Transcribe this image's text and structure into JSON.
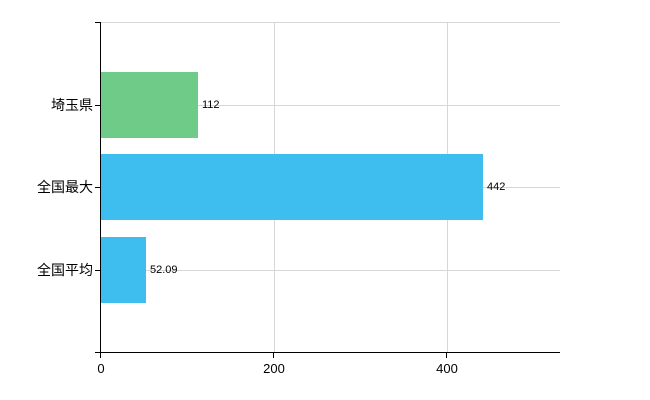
{
  "chart_data": {
    "type": "bar",
    "orientation": "horizontal",
    "title": "",
    "xlabel": "",
    "ylabel": "",
    "categories": [
      "埼玉県",
      "全国最大",
      "全国平均"
    ],
    "values": [
      112,
      442,
      52.09
    ],
    "value_labels": [
      "112",
      "442",
      "52.09"
    ],
    "bar_colors": [
      "#6fcb88",
      "#3ebeee",
      "#3ebeee"
    ],
    "xlim": [
      0,
      531
    ],
    "xticks": [
      0,
      200,
      400
    ],
    "xtick_labels": [
      "0",
      "200",
      "400"
    ],
    "grid": "on",
    "legend": "none",
    "colors": {
      "grid": "#d6d6d6",
      "axis": "#000000",
      "text": "#000000",
      "background": "#ffffff"
    }
  }
}
